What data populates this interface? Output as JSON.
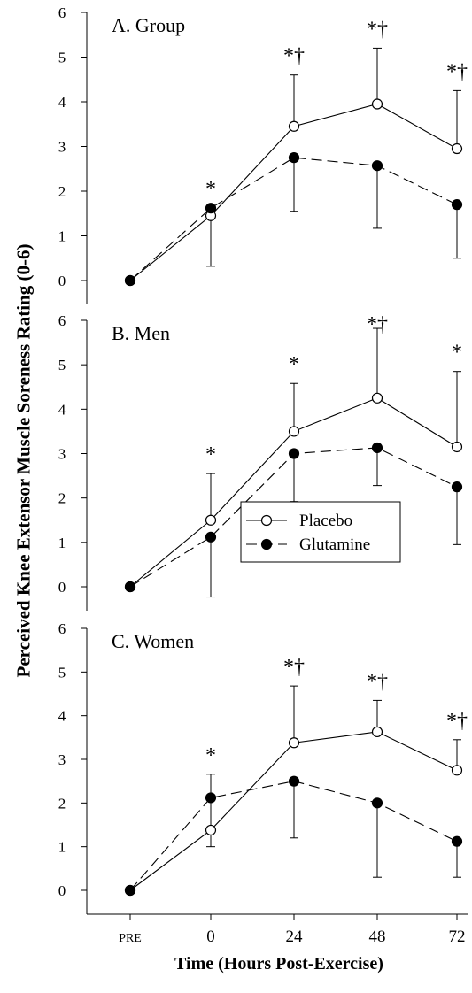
{
  "figure": {
    "ylabel": "Perceived Knee Extensor Muscle Soreness Rating (0-6)",
    "xlabel": "Time (Hours Post-Exercise)",
    "legend": {
      "placebo": "Placebo",
      "glutamine": "Glutamine"
    }
  },
  "chart_data": [
    {
      "type": "line",
      "title": "A. Group",
      "categories": [
        "PRE",
        "0",
        "24",
        "48",
        "72"
      ],
      "ylim": [
        0,
        6
      ],
      "yticks": [
        0,
        1,
        2,
        3,
        4,
        5,
        6
      ],
      "series": [
        {
          "name": "Placebo",
          "style": "solid",
          "marker": "open-circle",
          "values": [
            0,
            1.45,
            3.45,
            3.95,
            2.95
          ],
          "errors": [
            null,
            null,
            1.15,
            1.25,
            1.3
          ]
        },
        {
          "name": "Glutamine",
          "style": "dashed",
          "marker": "filled-circle",
          "values": [
            0,
            1.62,
            2.75,
            2.57,
            1.7
          ],
          "errors": [
            null,
            1.3,
            1.2,
            1.4,
            1.2
          ]
        }
      ],
      "annotations": [
        "",
        "*",
        "*†",
        "*†",
        "*†"
      ]
    },
    {
      "type": "line",
      "title": "B. Men",
      "categories": [
        "PRE",
        "0",
        "24",
        "48",
        "72"
      ],
      "ylim": [
        0,
        6
      ],
      "yticks": [
        0,
        1,
        2,
        3,
        4,
        5,
        6
      ],
      "series": [
        {
          "name": "Placebo",
          "style": "solid",
          "marker": "open-circle",
          "values": [
            0,
            1.5,
            3.5,
            4.25,
            3.15
          ],
          "errors": [
            null,
            1.05,
            1.08,
            1.57,
            1.7
          ]
        },
        {
          "name": "Glutamine",
          "style": "dashed",
          "marker": "filled-circle",
          "values": [
            0,
            1.12,
            3.0,
            3.13,
            2.25
          ],
          "errors": [
            null,
            1.35,
            1.08,
            0.85,
            1.3
          ]
        }
      ],
      "annotations": [
        "",
        "*",
        "*",
        "*†",
        "*"
      ],
      "legend": "bottom-right"
    },
    {
      "type": "line",
      "title": "C. Women",
      "categories": [
        "PRE",
        "0",
        "24",
        "48",
        "72"
      ],
      "ylim": [
        0,
        6
      ],
      "yticks": [
        0,
        1,
        2,
        3,
        4,
        5,
        6
      ],
      "series": [
        {
          "name": "Placebo",
          "style": "solid",
          "marker": "open-circle",
          "values": [
            0,
            1.38,
            3.38,
            3.63,
            2.75
          ],
          "errors": [
            null,
            1.28,
            1.3,
            0.72,
            0.7
          ]
        },
        {
          "name": "Glutamine",
          "style": "dashed",
          "marker": "filled-circle",
          "values": [
            0,
            2.12,
            2.5,
            2.0,
            1.12
          ],
          "errors": [
            null,
            1.12,
            1.3,
            1.7,
            0.82
          ]
        }
      ],
      "annotations": [
        "",
        "*",
        "*†",
        "*†",
        "*†"
      ]
    }
  ]
}
